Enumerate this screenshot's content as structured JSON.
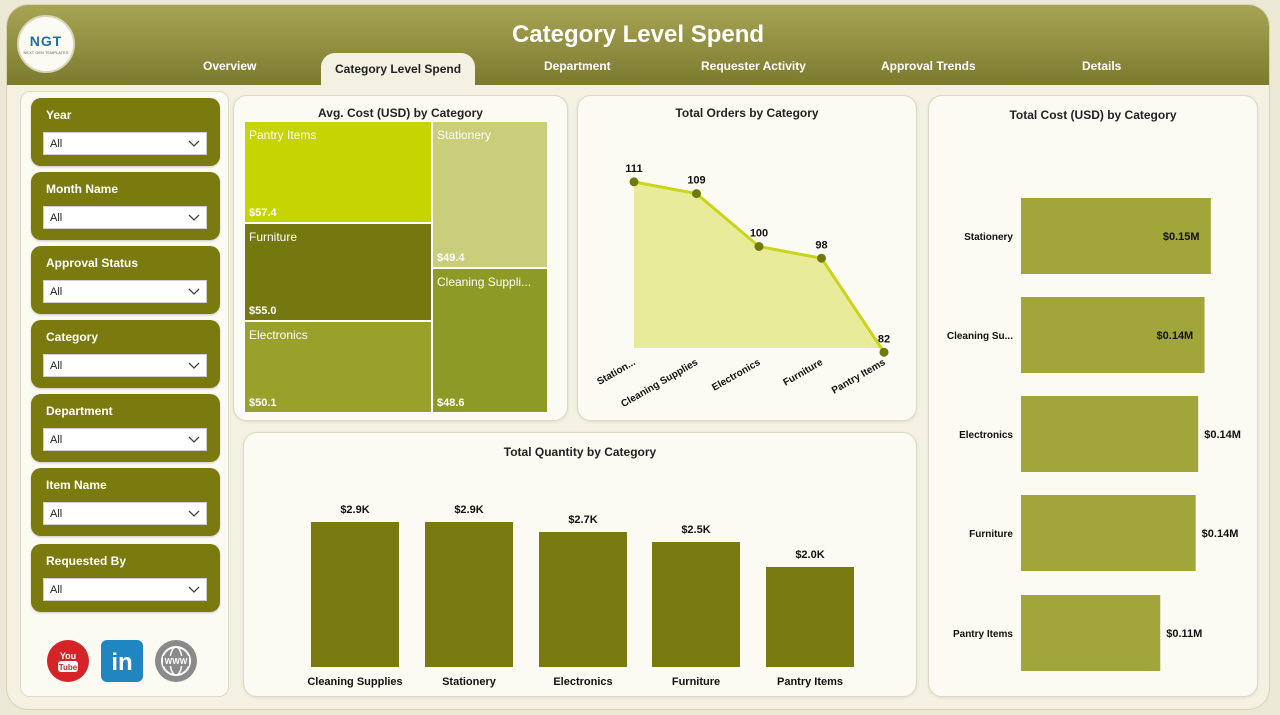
{
  "header": {
    "title": "Category Level Spend",
    "logo_text": "NGT",
    "logo_subtext": "NEXT GEN TEMPLATES"
  },
  "tabs": [
    {
      "label": "Overview"
    },
    {
      "label": "Category Level Spend",
      "active": true
    },
    {
      "label": "Department"
    },
    {
      "label": "Requester Activity"
    },
    {
      "label": "Approval Trends"
    },
    {
      "label": "Details"
    }
  ],
  "filters": [
    {
      "label": "Year",
      "value": "All"
    },
    {
      "label": "Month Name",
      "value": "All"
    },
    {
      "label": "Approval Status",
      "value": "All"
    },
    {
      "label": "Category",
      "value": "All"
    },
    {
      "label": "Department",
      "value": "All"
    },
    {
      "label": "Item Name",
      "value": "All"
    },
    {
      "label": "Requested By",
      "value": "All"
    }
  ],
  "social": [
    {
      "name": "youtube",
      "label": "You Tube",
      "color": "#d42428"
    },
    {
      "name": "linkedin",
      "label": "in",
      "color": "#1f86c2"
    },
    {
      "name": "www",
      "label": "WWW",
      "color": "#8a8a8a"
    }
  ],
  "colors": {
    "accent": "#7b7a0f",
    "header_dark": "#7b7a2e",
    "line": "#c9d41a",
    "area": "#e8ec9a",
    "bar_light": "#a2a63a"
  },
  "chart_data": [
    {
      "type": "treemap",
      "title": "Avg. Cost (USD) by Category",
      "items": [
        {
          "name": "Pantry Items",
          "value": 57.4,
          "label": "$57.4",
          "color": "#c6d400"
        },
        {
          "name": "Stationery",
          "value": 49.4,
          "label": "$49.4",
          "color": "#c9ce7a"
        },
        {
          "name": "Furniture",
          "value": 55.0,
          "label": "$55.0",
          "color": "#75770f"
        },
        {
          "name": "Cleaning Suppli...",
          "value": 48.6,
          "label": "$48.6",
          "color": "#8e9a26"
        },
        {
          "name": "Electronics",
          "value": 50.1,
          "label": "$50.1",
          "color": "#9aa12a"
        }
      ]
    },
    {
      "type": "area",
      "title": "Total Orders by Category",
      "categories": [
        "Station...",
        "Cleaning Supplies",
        "Electronics",
        "Furniture",
        "Pantry Items"
      ],
      "values": [
        111,
        109,
        100,
        98,
        82
      ]
    },
    {
      "type": "bar",
      "title": "Total Quantity by Category",
      "categories": [
        "Cleaning Supplies",
        "Stationery",
        "Electronics",
        "Furniture",
        "Pantry Items"
      ],
      "values": [
        2.9,
        2.9,
        2.7,
        2.5,
        2.0
      ],
      "labels": [
        "$2.9K",
        "$2.9K",
        "$2.7K",
        "$2.5K",
        "$2.0K"
      ],
      "color": "#797a10"
    },
    {
      "type": "bar",
      "orientation": "horizontal",
      "title": "Total Cost (USD) by Category",
      "categories": [
        "Stationery",
        "Cleaning Su...",
        "Electronics",
        "Furniture",
        "Pantry Items"
      ],
      "values": [
        0.15,
        0.145,
        0.14,
        0.138,
        0.11
      ],
      "labels": [
        "$0.15M",
        "$0.14M",
        "$0.14M",
        "$0.14M",
        "$0.11M"
      ],
      "color": "#a2a63a"
    }
  ]
}
